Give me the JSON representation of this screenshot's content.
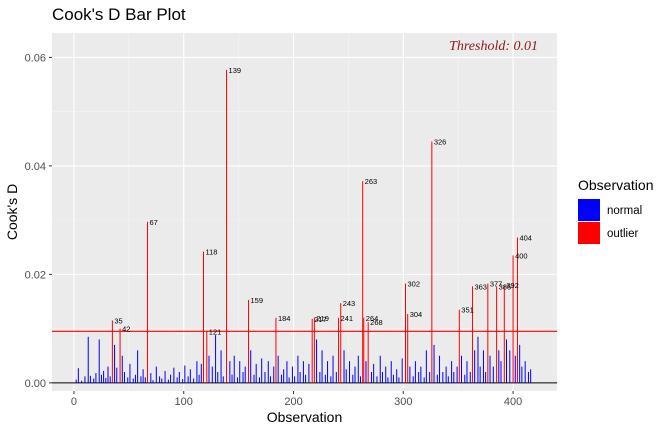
{
  "chart_data": {
    "type": "bar",
    "title": "Cook's D Bar Plot",
    "xlabel": "Observation",
    "ylabel": "Cook's D",
    "xlim": [
      -20,
      440
    ],
    "ylim": [
      -0.0015,
      0.0645
    ],
    "x_ticks": [
      0,
      100,
      200,
      300,
      400
    ],
    "y_ticks": [
      0.0,
      0.02,
      0.04,
      0.06
    ],
    "y_tick_labels": [
      "0.00",
      "0.02",
      "0.04",
      "0.06"
    ],
    "grid": true,
    "threshold": {
      "value": 0.0095,
      "label": "Threshold: 0.01",
      "color": "#ff0000",
      "text_color": "#8b1a1a"
    },
    "legend": {
      "title": "Observation",
      "position": "right",
      "entries": [
        {
          "label": "normal",
          "color": "#0000ff"
        },
        {
          "label": "outlier",
          "color": "#ff0000"
        }
      ]
    },
    "series": [
      {
        "name": "outlier",
        "color": "#ff0000",
        "points": [
          {
            "x": 35,
            "y": 0.0115
          },
          {
            "x": 42,
            "y": 0.01
          },
          {
            "x": 67,
            "y": 0.0297
          },
          {
            "x": 118,
            "y": 0.0242
          },
          {
            "x": 121,
            "y": 0.0095
          },
          {
            "x": 139,
            "y": 0.0577
          },
          {
            "x": 159,
            "y": 0.0153
          },
          {
            "x": 184,
            "y": 0.012
          },
          {
            "x": 217,
            "y": 0.0118
          },
          {
            "x": 219,
            "y": 0.012
          },
          {
            "x": 241,
            "y": 0.012
          },
          {
            "x": 243,
            "y": 0.0147
          },
          {
            "x": 263,
            "y": 0.0372
          },
          {
            "x": 264,
            "y": 0.012
          },
          {
            "x": 268,
            "y": 0.0112
          },
          {
            "x": 302,
            "y": 0.0183
          },
          {
            "x": 304,
            "y": 0.0127
          },
          {
            "x": 326,
            "y": 0.0445
          },
          {
            "x": 351,
            "y": 0.0135
          },
          {
            "x": 363,
            "y": 0.0178
          },
          {
            "x": 377,
            "y": 0.0183
          },
          {
            "x": 385,
            "y": 0.0178
          },
          {
            "x": 392,
            "y": 0.018
          },
          {
            "x": 400,
            "y": 0.0235
          },
          {
            "x": 404,
            "y": 0.0268
          }
        ]
      },
      {
        "name": "normal",
        "color": "#0000ff",
        "points": [
          {
            "x": 2,
            "y": 0.0006
          },
          {
            "x": 4,
            "y": 0.0027
          },
          {
            "x": 7,
            "y": 0.0004
          },
          {
            "x": 10,
            "y": 0.0012
          },
          {
            "x": 13,
            "y": 0.0085
          },
          {
            "x": 15,
            "y": 0.0013
          },
          {
            "x": 18,
            "y": 0.0008
          },
          {
            "x": 20,
            "y": 0.0018
          },
          {
            "x": 23,
            "y": 0.008
          },
          {
            "x": 25,
            "y": 0.0015
          },
          {
            "x": 27,
            "y": 0.0022
          },
          {
            "x": 29,
            "y": 0.0009
          },
          {
            "x": 31,
            "y": 0.003
          },
          {
            "x": 33,
            "y": 0.0012
          },
          {
            "x": 37,
            "y": 0.007
          },
          {
            "x": 39,
            "y": 0.0028
          },
          {
            "x": 44,
            "y": 0.005
          },
          {
            "x": 46,
            "y": 0.002
          },
          {
            "x": 49,
            "y": 0.001
          },
          {
            "x": 51,
            "y": 0.0035
          },
          {
            "x": 54,
            "y": 0.0008
          },
          {
            "x": 56,
            "y": 0.0015
          },
          {
            "x": 58,
            "y": 0.006
          },
          {
            "x": 61,
            "y": 0.0012
          },
          {
            "x": 63,
            "y": 0.0025
          },
          {
            "x": 65,
            "y": 0.001
          },
          {
            "x": 70,
            "y": 0.0018
          },
          {
            "x": 72,
            "y": 0.0005
          },
          {
            "x": 75,
            "y": 0.003
          },
          {
            "x": 78,
            "y": 0.0012
          },
          {
            "x": 80,
            "y": 0.0008
          },
          {
            "x": 83,
            "y": 0.0022
          },
          {
            "x": 86,
            "y": 0.0006
          },
          {
            "x": 88,
            "y": 0.0015
          },
          {
            "x": 91,
            "y": 0.0028
          },
          {
            "x": 94,
            "y": 0.001
          },
          {
            "x": 96,
            "y": 0.002
          },
          {
            "x": 99,
            "y": 0.0007
          },
          {
            "x": 101,
            "y": 0.0032
          },
          {
            "x": 104,
            "y": 0.0012
          },
          {
            "x": 106,
            "y": 0.0025
          },
          {
            "x": 109,
            "y": 0.0008
          },
          {
            "x": 112,
            "y": 0.004
          },
          {
            "x": 114,
            "y": 0.0015
          },
          {
            "x": 116,
            "y": 0.0035
          },
          {
            "x": 123,
            "y": 0.005
          },
          {
            "x": 126,
            "y": 0.003
          },
          {
            "x": 129,
            "y": 0.0088
          },
          {
            "x": 131,
            "y": 0.002
          },
          {
            "x": 134,
            "y": 0.006
          },
          {
            "x": 136,
            "y": 0.0012
          },
          {
            "x": 142,
            "y": 0.004
          },
          {
            "x": 144,
            "y": 0.0015
          },
          {
            "x": 146,
            "y": 0.005
          },
          {
            "x": 149,
            "y": 0.001
          },
          {
            "x": 151,
            "y": 0.004
          },
          {
            "x": 154,
            "y": 0.002
          },
          {
            "x": 156,
            "y": 0.003
          },
          {
            "x": 161,
            "y": 0.006
          },
          {
            "x": 164,
            "y": 0.0015
          },
          {
            "x": 166,
            "y": 0.0035
          },
          {
            "x": 169,
            "y": 0.001
          },
          {
            "x": 171,
            "y": 0.0045
          },
          {
            "x": 174,
            "y": 0.002
          },
          {
            "x": 177,
            "y": 0.004
          },
          {
            "x": 179,
            "y": 0.0012
          },
          {
            "x": 182,
            "y": 0.003
          },
          {
            "x": 186,
            "y": 0.005
          },
          {
            "x": 189,
            "y": 0.0015
          },
          {
            "x": 191,
            "y": 0.0025
          },
          {
            "x": 194,
            "y": 0.004
          },
          {
            "x": 196,
            "y": 0.001
          },
          {
            "x": 199,
            "y": 0.003
          },
          {
            "x": 201,
            "y": 0.0012
          },
          {
            "x": 204,
            "y": 0.005
          },
          {
            "x": 206,
            "y": 0.002
          },
          {
            "x": 209,
            "y": 0.004
          },
          {
            "x": 211,
            "y": 0.0015
          },
          {
            "x": 214,
            "y": 0.0035
          },
          {
            "x": 221,
            "y": 0.008
          },
          {
            "x": 224,
            "y": 0.002
          },
          {
            "x": 226,
            "y": 0.006
          },
          {
            "x": 229,
            "y": 0.0015
          },
          {
            "x": 231,
            "y": 0.004
          },
          {
            "x": 234,
            "y": 0.0012
          },
          {
            "x": 236,
            "y": 0.005
          },
          {
            "x": 239,
            "y": 0.002
          },
          {
            "x": 246,
            "y": 0.006
          },
          {
            "x": 248,
            "y": 0.0025
          },
          {
            "x": 251,
            "y": 0.004
          },
          {
            "x": 254,
            "y": 0.0015
          },
          {
            "x": 256,
            "y": 0.003
          },
          {
            "x": 259,
            "y": 0.005
          },
          {
            "x": 261,
            "y": 0.0012
          },
          {
            "x": 266,
            "y": 0.004
          },
          {
            "x": 271,
            "y": 0.002
          },
          {
            "x": 273,
            "y": 0.0035
          },
          {
            "x": 276,
            "y": 0.0012
          },
          {
            "x": 279,
            "y": 0.005
          },
          {
            "x": 281,
            "y": 0.002
          },
          {
            "x": 284,
            "y": 0.003
          },
          {
            "x": 286,
            "y": 0.001
          },
          {
            "x": 289,
            "y": 0.004
          },
          {
            "x": 291,
            "y": 0.0015
          },
          {
            "x": 294,
            "y": 0.0025
          },
          {
            "x": 296,
            "y": 0.001
          },
          {
            "x": 299,
            "y": 0.0045
          },
          {
            "x": 306,
            "y": 0.003
          },
          {
            "x": 309,
            "y": 0.0012
          },
          {
            "x": 311,
            "y": 0.004
          },
          {
            "x": 314,
            "y": 0.002
          },
          {
            "x": 316,
            "y": 0.003
          },
          {
            "x": 319,
            "y": 0.001
          },
          {
            "x": 321,
            "y": 0.006
          },
          {
            "x": 324,
            "y": 0.002
          },
          {
            "x": 328,
            "y": 0.007
          },
          {
            "x": 331,
            "y": 0.0015
          },
          {
            "x": 333,
            "y": 0.005
          },
          {
            "x": 336,
            "y": 0.002
          },
          {
            "x": 339,
            "y": 0.003
          },
          {
            "x": 341,
            "y": 0.0012
          },
          {
            "x": 344,
            "y": 0.004
          },
          {
            "x": 346,
            "y": 0.002
          },
          {
            "x": 349,
            "y": 0.003
          },
          {
            "x": 353,
            "y": 0.005
          },
          {
            "x": 356,
            "y": 0.0015
          },
          {
            "x": 358,
            "y": 0.004
          },
          {
            "x": 361,
            "y": 0.002
          },
          {
            "x": 365,
            "y": 0.006
          },
          {
            "x": 368,
            "y": 0.0085
          },
          {
            "x": 370,
            "y": 0.003
          },
          {
            "x": 373,
            "y": 0.006
          },
          {
            "x": 375,
            "y": 0.002
          },
          {
            "x": 379,
            "y": 0.005
          },
          {
            "x": 382,
            "y": 0.003
          },
          {
            "x": 387,
            "y": 0.006
          },
          {
            "x": 389,
            "y": 0.004
          },
          {
            "x": 394,
            "y": 0.008
          },
          {
            "x": 397,
            "y": 0.006
          },
          {
            "x": 402,
            "y": 0.005
          },
          {
            "x": 406,
            "y": 0.007
          },
          {
            "x": 408,
            "y": 0.003
          },
          {
            "x": 411,
            "y": 0.004
          },
          {
            "x": 414,
            "y": 0.002
          },
          {
            "x": 416,
            "y": 0.0025
          }
        ]
      }
    ]
  }
}
